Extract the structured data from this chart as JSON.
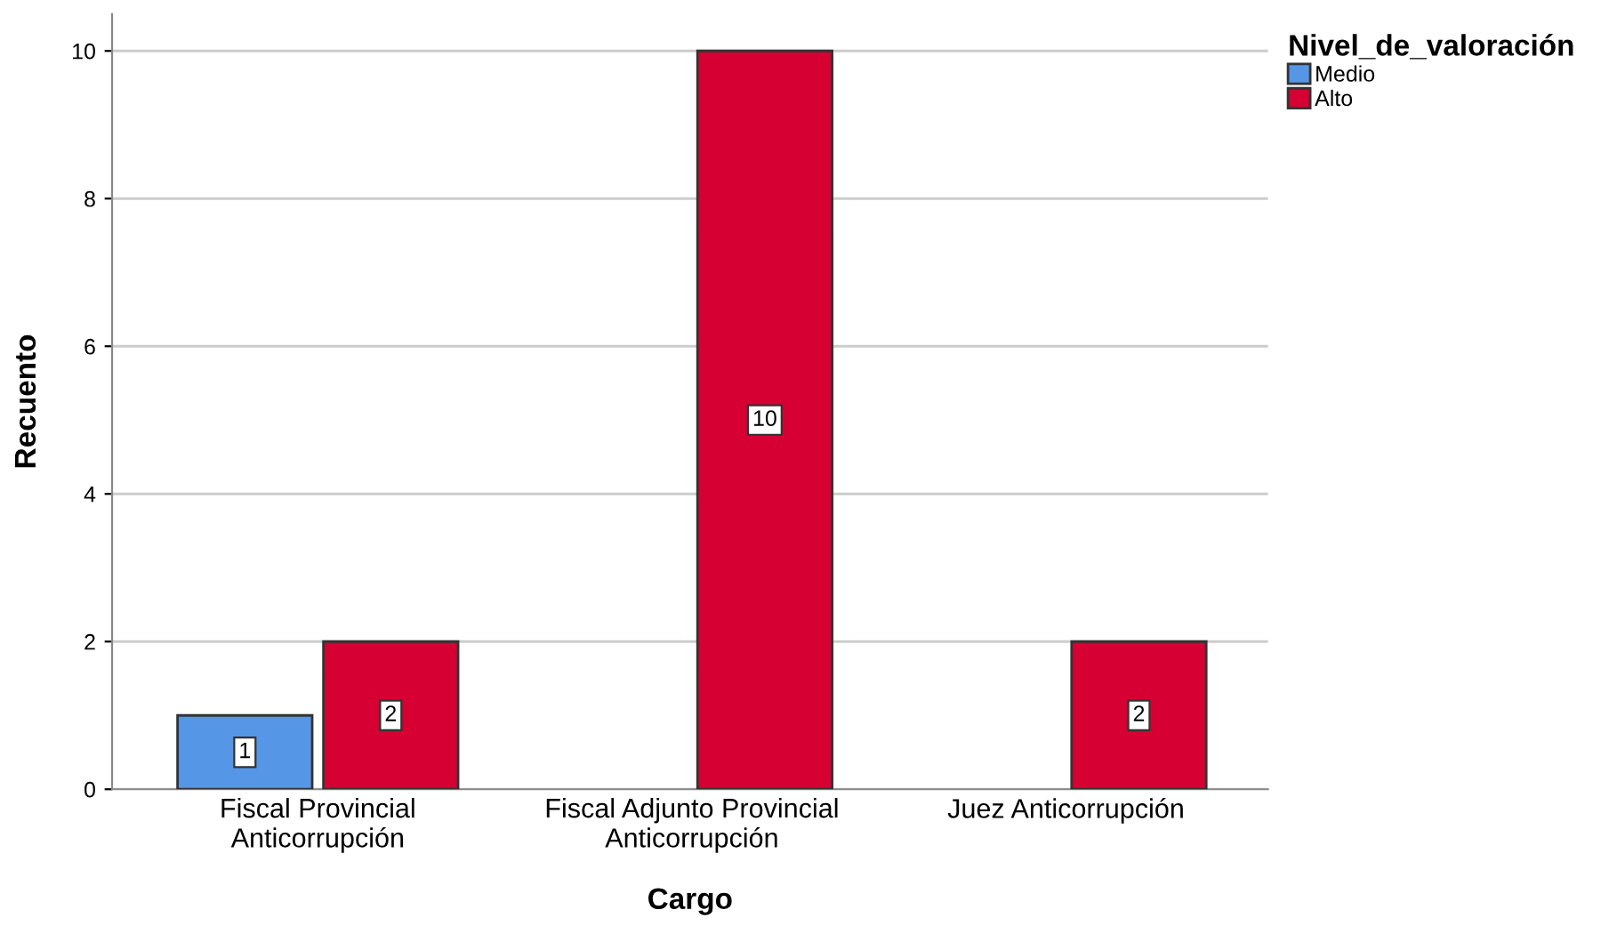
{
  "chart_data": {
    "type": "bar",
    "xlabel": "Cargo",
    "ylabel": "Recuento",
    "legend_title": "Nivel_de_valoración",
    "categories": [
      "Fiscal Provincial\nAnticorrupción",
      "Fiscal Adjunto Provincial\nAnticorrupción",
      "Juez Anticorrupción"
    ],
    "series": [
      {
        "name": "Medio",
        "color": "#5596e6",
        "values": [
          1,
          null,
          null
        ]
      },
      {
        "name": "Alto",
        "color": "#d60032",
        "values": [
          2,
          10,
          2
        ]
      }
    ],
    "ylim": [
      0,
      10.5
    ],
    "yticks": [
      0,
      2,
      4,
      6,
      8,
      10
    ],
    "grid": "y",
    "legend": "top right",
    "data_labels": true
  }
}
